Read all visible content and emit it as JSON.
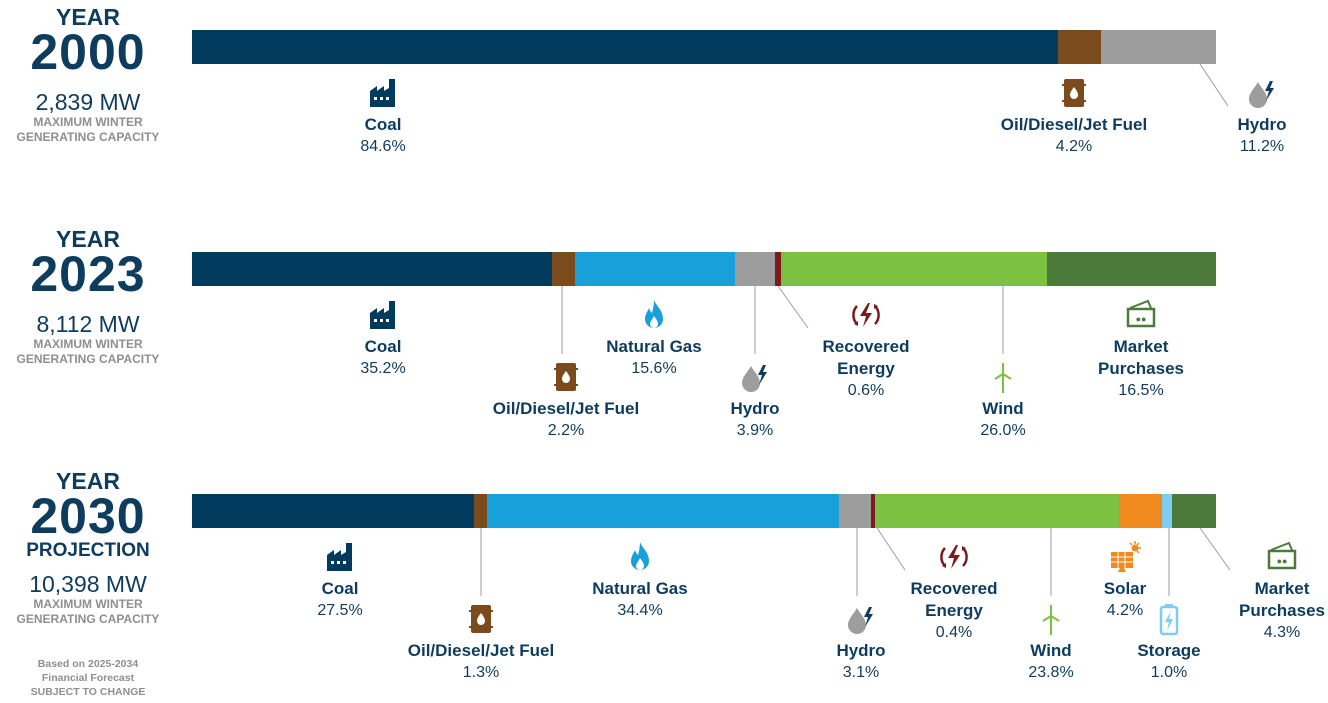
{
  "chart_data": [
    {
      "type": "stacked_bar",
      "title": "YEAR",
      "year": "2000",
      "capacity": "2,839 MW",
      "capacity_label": "MAXIMUM WINTER GENERATING CAPACITY",
      "xlim": [
        0,
        100
      ],
      "series": [
        {
          "name": "Coal",
          "color": "#003a5d",
          "values": [
            84.6
          ],
          "value_labels": [
            "84.6%"
          ]
        },
        {
          "name": "Oil/Diesel/Jet Fuel",
          "color": "#7b4a1d",
          "values": [
            4.2
          ],
          "value_labels": [
            "4.2%"
          ]
        },
        {
          "name": "Hydro",
          "color": "#9d9d9d",
          "values": [
            11.2
          ],
          "value_labels": [
            "11.2%"
          ]
        }
      ]
    },
    {
      "type": "stacked_bar",
      "title": "YEAR",
      "year": "2023",
      "capacity": "8,112 MW",
      "capacity_label": "MAXIMUM WINTER GENERATING CAPACITY",
      "xlim": [
        0,
        100
      ],
      "series": [
        {
          "name": "Coal",
          "color": "#003a5d",
          "values": [
            35.2
          ],
          "value_labels": [
            "35.2%"
          ]
        },
        {
          "name": "Oil/Diesel/Jet Fuel",
          "color": "#7b4a1d",
          "values": [
            2.2
          ],
          "value_labels": [
            "2.2%"
          ]
        },
        {
          "name": "Natural Gas",
          "color": "#17a0da",
          "values": [
            15.6
          ],
          "value_labels": [
            "15.6%"
          ]
        },
        {
          "name": "Hydro",
          "color": "#9d9d9d",
          "values": [
            3.9
          ],
          "value_labels": [
            "3.9%"
          ]
        },
        {
          "name": "Recovered Energy",
          "color": "#7a1c1c",
          "values": [
            0.6
          ],
          "value_labels": [
            "0.6%"
          ]
        },
        {
          "name": "Wind",
          "color": "#7cc142",
          "values": [
            26.0
          ],
          "value_labels": [
            "26.0%"
          ]
        },
        {
          "name": "Market Purchases",
          "color": "#4b7a3a",
          "values": [
            16.5
          ],
          "value_labels": [
            "16.5%"
          ]
        }
      ]
    },
    {
      "type": "stacked_bar",
      "title": "YEAR",
      "year": "2030",
      "subtitle": "PROJECTION",
      "capacity": "10,398 MW",
      "capacity_label": "MAXIMUM WINTER GENERATING CAPACITY",
      "xlim": [
        0,
        100
      ],
      "series": [
        {
          "name": "Coal",
          "color": "#003a5d",
          "values": [
            27.5
          ],
          "value_labels": [
            "27.5%"
          ]
        },
        {
          "name": "Oil/Diesel/Jet Fuel",
          "color": "#7b4a1d",
          "values": [
            1.3
          ],
          "value_labels": [
            "1.3%"
          ]
        },
        {
          "name": "Natural Gas",
          "color": "#17a0da",
          "values": [
            34.4
          ],
          "value_labels": [
            "34.4%"
          ]
        },
        {
          "name": "Hydro",
          "color": "#9d9d9d",
          "values": [
            3.1
          ],
          "value_labels": [
            "3.1%"
          ]
        },
        {
          "name": "Recovered Energy",
          "color": "#7a1c1c",
          "values": [
            0.4
          ],
          "value_labels": [
            "0.4%"
          ]
        },
        {
          "name": "Wind",
          "color": "#7cc142",
          "values": [
            23.8
          ],
          "value_labels": [
            "23.8%"
          ]
        },
        {
          "name": "Solar",
          "color": "#f18a1e",
          "values": [
            4.2
          ],
          "value_labels": [
            "4.2%"
          ]
        },
        {
          "name": "Storage",
          "color": "#7ccdf0",
          "values": [
            1.0
          ],
          "value_labels": [
            "1.0%"
          ]
        },
        {
          "name": "Market Purchases",
          "color": "#4b7a3a",
          "values": [
            4.3
          ],
          "value_labels": [
            "4.3%"
          ]
        }
      ]
    }
  ],
  "note": [
    "Based on 2025-2034",
    "Financial Forecast",
    "SUBJECT TO CHANGE"
  ]
}
